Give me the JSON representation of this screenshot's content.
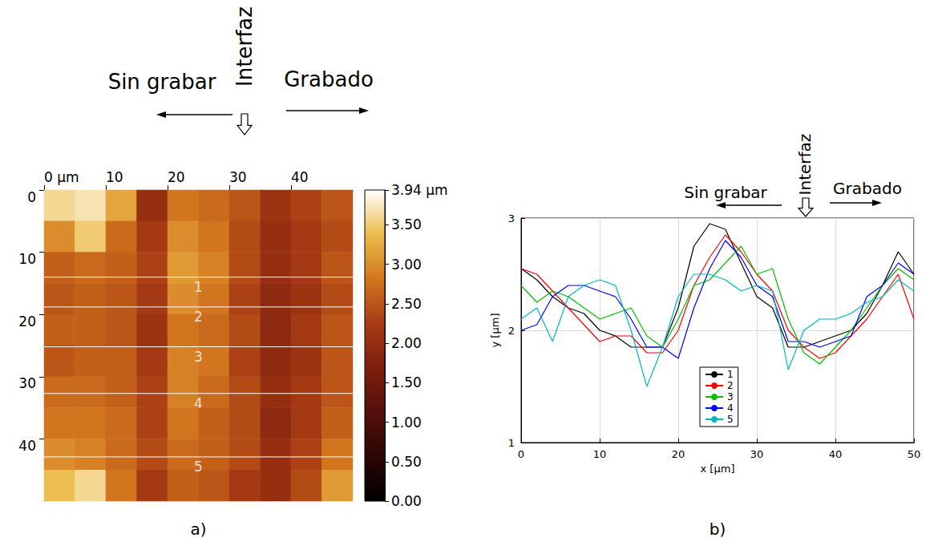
{
  "chart_data": [
    {
      "type": "heatmap",
      "caption": "a)",
      "annotations": {
        "left": "Sin grabar",
        "right": "Grabado",
        "interface": "Interfaz"
      },
      "xlim": [
        0,
        50
      ],
      "ylim": [
        0,
        50
      ],
      "xticks": [
        {
          "value": 0,
          "label": "0 µm"
        },
        10,
        20,
        30,
        40
      ],
      "yticks": [
        0,
        10,
        20,
        30,
        40
      ],
      "x": [
        2.5,
        7.5,
        12.5,
        17.5,
        22.5,
        27.5,
        32.5,
        37.5,
        42.5,
        47.5
      ],
      "y": [
        2.5,
        7.5,
        12.5,
        17.5,
        22.5,
        27.5,
        32.5,
        37.5,
        42.5,
        47.5
      ],
      "cells": [
        [
          3.6,
          3.7,
          3.2,
          2.0,
          2.8,
          2.7,
          2.5,
          2.1,
          2.3,
          2.5
        ],
        [
          3.0,
          3.5,
          2.7,
          2.2,
          3.0,
          2.8,
          2.4,
          2.0,
          2.2,
          2.4
        ],
        [
          2.6,
          2.7,
          2.6,
          2.3,
          3.1,
          2.9,
          2.4,
          2.0,
          2.2,
          2.5
        ],
        [
          2.5,
          2.6,
          2.5,
          2.2,
          3.0,
          2.8,
          2.3,
          1.9,
          2.1,
          2.4
        ],
        [
          2.6,
          2.6,
          2.5,
          2.1,
          2.8,
          2.7,
          2.4,
          1.9,
          2.2,
          2.5
        ],
        [
          2.5,
          2.6,
          2.6,
          2.2,
          2.9,
          2.8,
          2.3,
          1.9,
          2.1,
          2.5
        ],
        [
          2.7,
          2.7,
          2.6,
          2.3,
          2.9,
          2.7,
          2.4,
          2.0,
          2.2,
          2.5
        ],
        [
          2.8,
          2.8,
          2.7,
          2.3,
          2.8,
          2.6,
          2.4,
          1.9,
          2.2,
          2.6
        ],
        [
          3.0,
          2.9,
          2.7,
          2.4,
          2.7,
          2.6,
          2.4,
          2.0,
          2.3,
          2.8
        ],
        [
          3.4,
          3.6,
          2.8,
          2.2,
          2.6,
          2.5,
          2.2,
          2.0,
          2.4,
          3.1
        ]
      ],
      "colorbar": {
        "range": [
          0,
          3.94
        ],
        "ticks": [
          {
            "value": 0,
            "label": "0.00"
          },
          {
            "value": 0.5,
            "label": "0.50"
          },
          {
            "value": 1,
            "label": "1.00"
          },
          {
            "value": 1.5,
            "label": "1.50"
          },
          {
            "value": 2,
            "label": "2.00"
          },
          {
            "value": 2.5,
            "label": "2.50"
          },
          {
            "value": 3,
            "label": "3.00"
          },
          {
            "value": 3.5,
            "label": "3.50"
          },
          {
            "value": 3.94,
            "label": "3.94 µm"
          }
        ]
      },
      "profiles": [
        {
          "label": "1",
          "y": 14.0
        },
        {
          "label": "2",
          "y": 18.8
        },
        {
          "label": "3",
          "y": 25.2
        },
        {
          "label": "4",
          "y": 32.7
        },
        {
          "label": "5",
          "y": 42.9
        }
      ]
    },
    {
      "type": "line",
      "caption": "b)",
      "annotations": {
        "left": "Sin grabar",
        "right": "Grabado",
        "interface": "Interfaz"
      },
      "xlabel": "x [µm]",
      "ylabel": "y [µm]",
      "xlim": [
        0,
        50
      ],
      "ylim": [
        1,
        3
      ],
      "xticks": [
        0,
        10,
        20,
        30,
        40,
        50
      ],
      "yticks": [
        1,
        2,
        3
      ],
      "grid": true,
      "legend": "bottom",
      "x": [
        0,
        2,
        4,
        6,
        8,
        10,
        12,
        14,
        16,
        18,
        20,
        22,
        24,
        26,
        28,
        30,
        32,
        34,
        36,
        38,
        40,
        42,
        44,
        46,
        48,
        50
      ],
      "series": [
        {
          "name": "1",
          "color": "#000000",
          "values": [
            2.55,
            2.45,
            2.3,
            2.2,
            2.15,
            2.0,
            1.95,
            1.85,
            1.85,
            1.85,
            2.2,
            2.75,
            2.95,
            2.9,
            2.6,
            2.3,
            2.2,
            1.85,
            1.85,
            1.9,
            1.95,
            2.0,
            2.15,
            2.4,
            2.7,
            2.5
          ]
        },
        {
          "name": "2",
          "color": "#ff0000",
          "values": [
            2.55,
            2.5,
            2.35,
            2.2,
            2.05,
            1.9,
            1.95,
            1.95,
            1.8,
            1.8,
            2.0,
            2.4,
            2.65,
            2.85,
            2.7,
            2.5,
            2.35,
            2.0,
            1.85,
            1.75,
            1.8,
            1.95,
            2.1,
            2.3,
            2.5,
            2.1
          ]
        },
        {
          "name": "3",
          "color": "#00c000",
          "values": [
            2.4,
            2.25,
            2.35,
            2.3,
            2.2,
            2.1,
            2.15,
            2.2,
            1.95,
            1.85,
            2.1,
            2.4,
            2.45,
            2.6,
            2.75,
            2.5,
            2.55,
            2.1,
            1.8,
            1.7,
            1.85,
            2.0,
            2.2,
            2.4,
            2.55,
            2.45
          ]
        },
        {
          "name": "4",
          "color": "#0000ff",
          "values": [
            2.0,
            2.05,
            2.3,
            2.4,
            2.4,
            2.35,
            2.3,
            2.1,
            1.85,
            1.85,
            1.75,
            2.2,
            2.55,
            2.8,
            2.65,
            2.4,
            2.3,
            1.9,
            1.9,
            1.85,
            1.9,
            1.95,
            2.3,
            2.4,
            2.6,
            2.5
          ]
        },
        {
          "name": "5",
          "color": "#00b8c0",
          "values": [
            2.1,
            2.2,
            1.9,
            2.3,
            2.4,
            2.45,
            2.4,
            2.0,
            1.5,
            1.85,
            2.3,
            2.5,
            2.5,
            2.45,
            2.35,
            2.4,
            2.35,
            1.65,
            2.0,
            2.1,
            2.1,
            2.15,
            2.25,
            2.3,
            2.45,
            2.35
          ]
        }
      ]
    }
  ]
}
